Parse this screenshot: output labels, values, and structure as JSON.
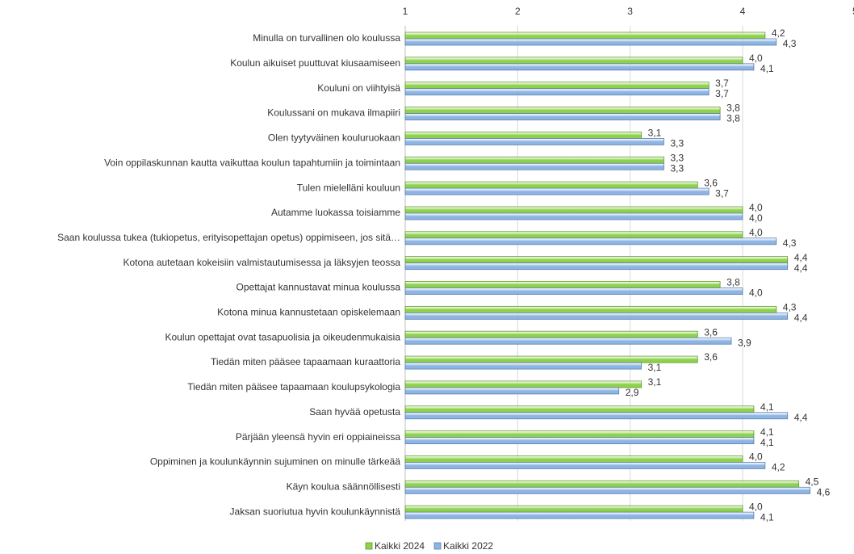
{
  "chart_data": {
    "type": "bar",
    "orientation": "horizontal",
    "categories": [
      "Minulla on turvallinen olo koulussa",
      "Koulun aikuiset puuttuvat kiusaamiseen",
      "Kouluni on viihtyisä",
      "Koulussani on mukava ilmapiiri",
      "Olen tyytyväinen kouluruokaan",
      "Voin oppilaskunnan kautta vaikuttaa koulun tapahtumiin ja toimintaan",
      "Tulen mielelläni kouluun",
      "Autamme luokassa toisiamme",
      "Saan koulussa tukea (tukiopetus, erityisopettajan opetus) oppimiseen, jos sitä…",
      "Kotona autetaan kokeisiin valmistautumisessa ja läksyjen teossa",
      "Opettajat kannustavat minua koulussa",
      "Kotona minua kannustetaan opiskelemaan",
      "Koulun opettajat ovat tasapuolisia ja oikeudenmukaisia",
      "Tiedän miten pääsee tapaamaan kuraattoria",
      "Tiedän miten pääsee tapaamaan koulupsykologia",
      "Saan hyvää opetusta",
      "Pärjään yleensä hyvin eri oppiaineissa",
      "Oppiminen ja koulunkäynnin sujuminen on minulle tärkeää",
      "Käyn koulua säännöllisesti",
      "Jaksan suoriutua hyvin koulunkäynnistä"
    ],
    "series": [
      {
        "name": "Kaikki 2024",
        "color": "#8ed24c",
        "values": [
          4.2,
          4.0,
          3.7,
          3.8,
          3.1,
          3.3,
          3.6,
          4.0,
          4.0,
          4.4,
          3.8,
          4.3,
          3.6,
          3.6,
          3.1,
          4.1,
          4.1,
          4.0,
          4.5,
          4.0
        ],
        "value_labels": [
          "4,2",
          "4,0",
          "3,7",
          "3,8",
          "3,1",
          "3,3",
          "3,6",
          "4,0",
          "4,0",
          "4,4",
          "3,8",
          "4,3",
          "3,6",
          "3,6",
          "3,1",
          "4,1",
          "4,1",
          "4,0",
          "4,5",
          "4,0"
        ]
      },
      {
        "name": "Kaikki 2022",
        "color": "#8db4e2",
        "values": [
          4.3,
          4.1,
          3.7,
          3.8,
          3.3,
          3.3,
          3.7,
          4.0,
          4.3,
          4.4,
          4.0,
          4.4,
          3.9,
          3.1,
          2.9,
          4.4,
          4.1,
          4.2,
          4.6,
          4.1
        ],
        "value_labels": [
          "4,3",
          "4,1",
          "3,7",
          "3,8",
          "3,3",
          "3,3",
          "3,7",
          "4,0",
          "4,3",
          "4,4",
          "4,0",
          "4,4",
          "3,9",
          "3,1",
          "2,9",
          "4,4",
          "4,1",
          "4,2",
          "4,6",
          "4,1"
        ]
      }
    ],
    "xlim": [
      1,
      5
    ],
    "xticks": [
      1,
      2,
      3,
      4,
      5
    ],
    "grid": true,
    "legend": "bottom"
  }
}
